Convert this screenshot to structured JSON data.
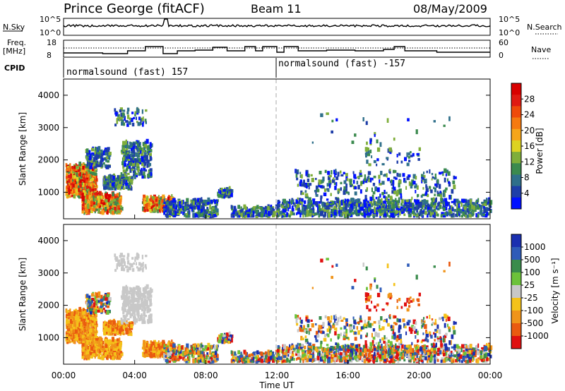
{
  "header": {
    "station": "Prince George (fitACF)",
    "beam": "Beam 11",
    "date": "08/May/2009"
  },
  "top_panels": {
    "nsky_label": "N.Sky",
    "nsky_ticks": [
      "10^5",
      "10^0"
    ],
    "nsearch_label": "N.Search",
    "nsearch_ticks": [
      "10^5",
      "10^0"
    ],
    "freq_label": "Freq.",
    "freq_unit": "[MHz]",
    "freq_ticks": [
      "18",
      "8"
    ],
    "nave_label": "Nave",
    "nave_ticks": [
      "60",
      "0"
    ],
    "cpid_label": "CPID",
    "cpid_entries": [
      {
        "text": "normalsound (fast) 157",
        "start_hour": 0
      },
      {
        "text": "normalsound (fast) -157",
        "start_hour": 12
      }
    ]
  },
  "chart_data": [
    {
      "type": "heatmap",
      "name": "power",
      "ylabel": "Slant Range [km]",
      "xlabel": "",
      "xlim": [
        0,
        24
      ],
      "ylim": [
        180,
        4500
      ],
      "yticks": [
        1000,
        2000,
        3000,
        4000
      ],
      "colorbar": {
        "label": "Power [dB]",
        "ticks": [
          "28",
          "24",
          "20",
          "16",
          "12",
          "8",
          "4"
        ],
        "range": [
          0,
          32
        ],
        "colors": [
          "#0010ff",
          "#1e3ea8",
          "#2f6f8a",
          "#3b8a4e",
          "#7fae3a",
          "#ddd322",
          "#f6a51a",
          "#f57a10",
          "#ef4a0a",
          "#e01a12",
          "#d80000"
        ]
      }
    },
    {
      "type": "heatmap",
      "name": "velocity",
      "ylabel": "Slant Range [km]",
      "xlabel": "Time UT",
      "xlim": [
        0,
        24
      ],
      "ylim": [
        180,
        4500
      ],
      "yticks": [
        1000,
        2000,
        3000,
        4000
      ],
      "xticks": [
        "00:00",
        "04:00",
        "08:00",
        "12:00",
        "16:00",
        "20:00",
        "00:00"
      ],
      "colorbar": {
        "label": "Velocity [m s⁻¹]",
        "ticks": [
          "1000",
          "500",
          "100",
          "25",
          "-25",
          "-100",
          "-500",
          "-1000"
        ],
        "colors": [
          "#1a2fb0",
          "#2e5bb8",
          "#3a8c4c",
          "#6cc23a",
          "#c8c8c8",
          "#f4c21a",
          "#f0941a",
          "#ea5a10",
          "#e01010"
        ]
      }
    }
  ],
  "text": {
    "ylabel_power": "Slant Range [km]",
    "ylabel_velocity": "Slant Range [km]",
    "xlabel": "Time UT"
  }
}
